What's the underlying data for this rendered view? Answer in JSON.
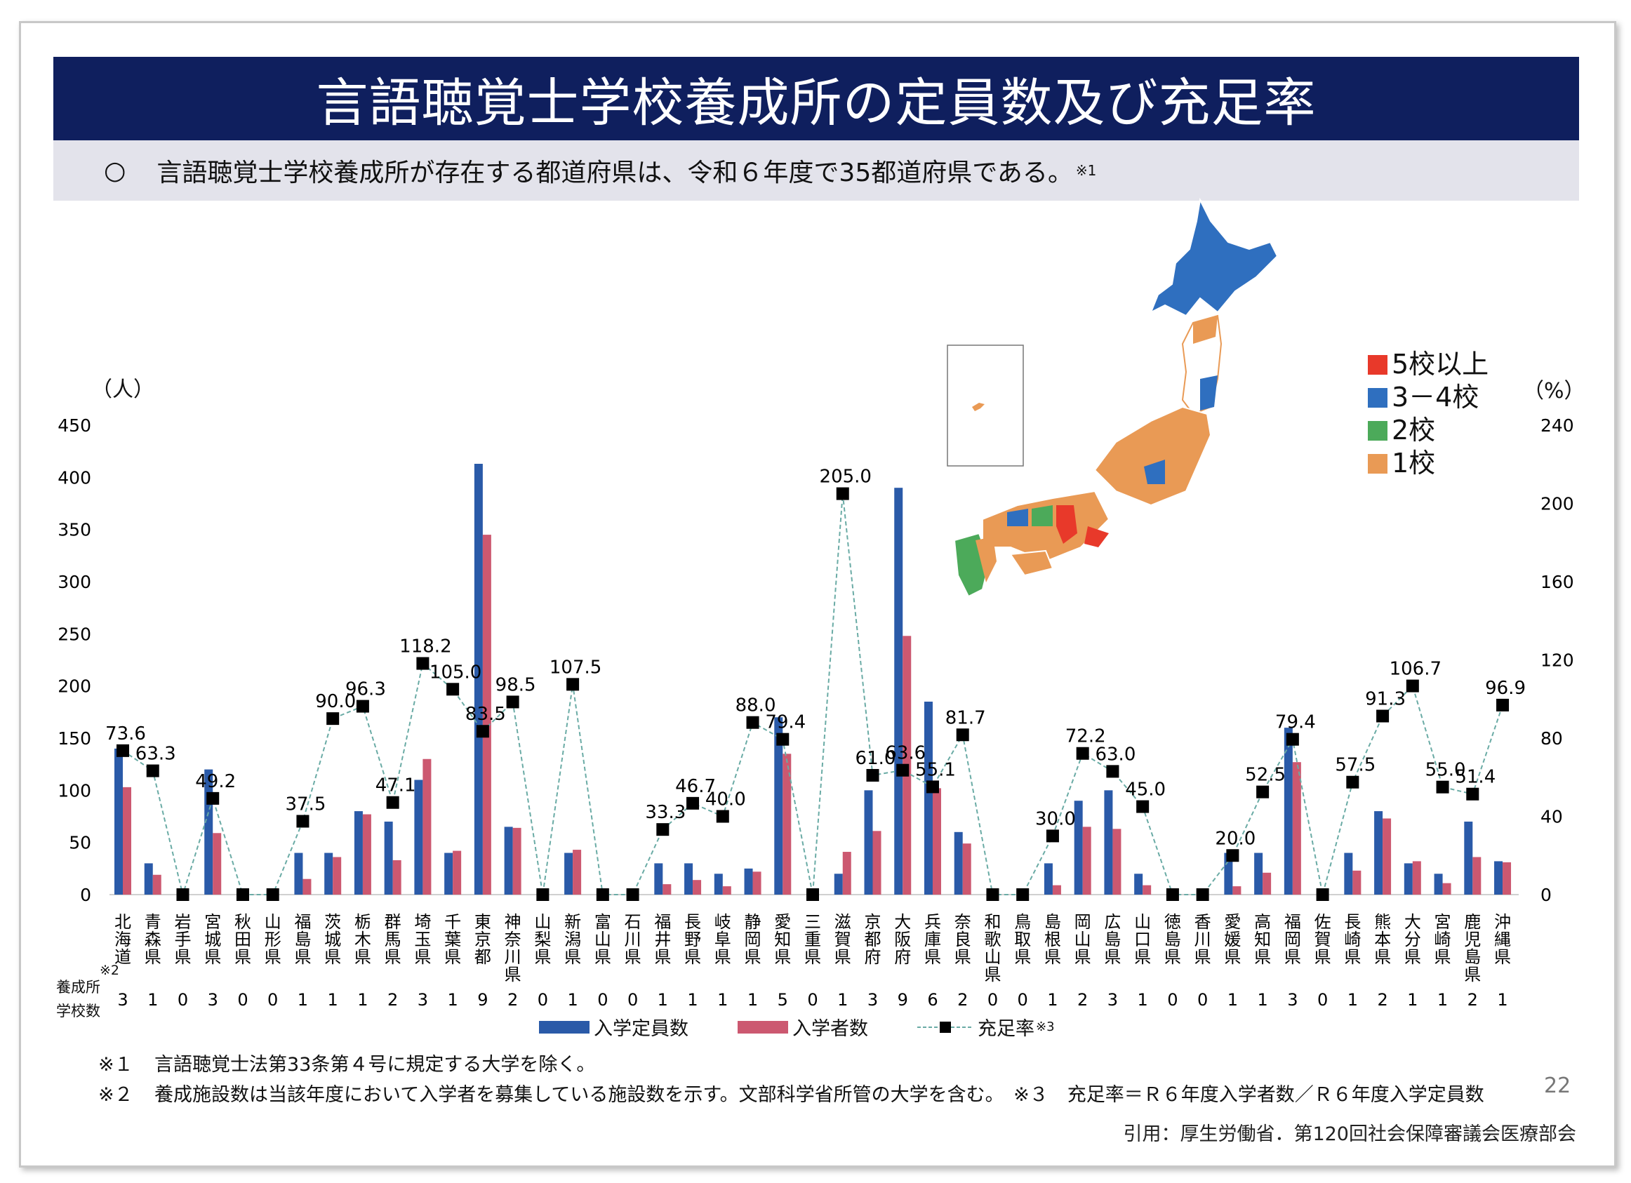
{
  "title": "言語聴覚士学校養成所の定員数及び充足率",
  "subtitle": {
    "bullet": "○",
    "text": "言語聴覚士学校養成所が存在する都道府県は、令和６年度で35都道府県である。",
    "note_ref": "※1"
  },
  "map_legend": [
    {
      "label": "5校以上",
      "color": "#e8392a"
    },
    {
      "label": "3－4校",
      "color": "#2f6fbf"
    },
    {
      "label": "2校",
      "color": "#4caa5a"
    },
    {
      "label": "1校",
      "color": "#e99a55"
    }
  ],
  "schools_row": {
    "label_line1": "養成所",
    "label_line2": "学校数",
    "note_ref": "※2"
  },
  "chart_data": {
    "type": "bar",
    "title": "言語聴覚士学校養成所の定員数及び充足率",
    "ylabel": "（人）",
    "y2label": "（%）",
    "ylim": [
      0,
      450
    ],
    "y2lim": [
      0,
      240
    ],
    "yticks": [
      0,
      50,
      100,
      150,
      200,
      250,
      300,
      350,
      400,
      450
    ],
    "y2ticks": [
      0,
      40,
      80,
      120,
      160,
      200,
      240
    ],
    "grid": false,
    "legend_placement": "bottom",
    "categories": [
      "北海道",
      "青森県",
      "岩手県",
      "宮城県",
      "秋田県",
      "山形県",
      "福島県",
      "茨城県",
      "栃木県",
      "群馬県",
      "埼玉県",
      "千葉県",
      "東京都",
      "神奈川県",
      "山梨県",
      "新潟県",
      "富山県",
      "石川県",
      "福井県",
      "長野県",
      "岐阜県",
      "静岡県",
      "愛知県",
      "三重県",
      "滋賀県",
      "京都府",
      "大阪府",
      "兵庫県",
      "奈良県",
      "和歌山県",
      "鳥取県",
      "島根県",
      "岡山県",
      "広島県",
      "山口県",
      "徳島県",
      "香川県",
      "愛媛県",
      "高知県",
      "福岡県",
      "佐賀県",
      "長崎県",
      "熊本県",
      "大分県",
      "宮崎県",
      "鹿児島県",
      "沖縄県"
    ],
    "school_counts": [
      3,
      1,
      0,
      3,
      0,
      0,
      1,
      1,
      1,
      2,
      3,
      1,
      9,
      2,
      0,
      1,
      0,
      0,
      1,
      1,
      1,
      1,
      5,
      0,
      1,
      3,
      9,
      6,
      2,
      0,
      0,
      1,
      2,
      3,
      1,
      0,
      0,
      1,
      1,
      3,
      0,
      1,
      2,
      1,
      1,
      2,
      1
    ],
    "series": [
      {
        "name": "入学定員数",
        "color": "#2a5aa8",
        "axis": "left",
        "values": [
          140,
          30,
          0,
          120,
          0,
          0,
          40,
          40,
          80,
          70,
          110,
          40,
          413,
          65,
          0,
          40,
          0,
          0,
          30,
          30,
          20,
          25,
          170,
          0,
          20,
          100,
          390,
          185,
          60,
          0,
          0,
          30,
          90,
          100,
          20,
          0,
          0,
          40,
          40,
          160,
          0,
          40,
          80,
          30,
          20,
          70,
          32
        ]
      },
      {
        "name": "入学者数",
        "color": "#cc5870",
        "axis": "left",
        "values": [
          103,
          19,
          0,
          59,
          0,
          0,
          15,
          36,
          77,
          33,
          130,
          42,
          345,
          64,
          0,
          43,
          0,
          0,
          10,
          14,
          8,
          22,
          135,
          0,
          41,
          61,
          248,
          102,
          49,
          0,
          0,
          9,
          65,
          63,
          9,
          0,
          0,
          8,
          21,
          127,
          0,
          23,
          73,
          32,
          11,
          36,
          31
        ]
      },
      {
        "name": "充足率",
        "note_ref": "※3",
        "type": "line",
        "color": "#6aaba5",
        "axis": "right",
        "values": [
          73.6,
          63.3,
          0,
          49.2,
          0,
          0,
          37.5,
          90.0,
          96.3,
          47.1,
          118.2,
          105.0,
          83.5,
          98.5,
          0,
          107.5,
          0,
          0,
          33.3,
          46.7,
          40.0,
          88.0,
          79.4,
          0,
          205.0,
          61.0,
          63.6,
          55.1,
          81.7,
          0,
          0,
          30.0,
          72.2,
          63.0,
          45.0,
          0,
          0,
          20.0,
          52.5,
          79.4,
          0,
          57.5,
          91.3,
          106.7,
          55.0,
          51.4,
          96.9
        ],
        "labels": [
          "73.6",
          "63.3",
          "",
          "49.2",
          "",
          "",
          "37.5",
          "90.0",
          "96.3",
          "47.1",
          "118.2",
          "105.0",
          "83.5",
          "98.5",
          "",
          "107.5",
          "",
          "",
          "33.3",
          "46.7",
          "40.0",
          "88.0",
          "79.4",
          "",
          "205.0",
          "61.0",
          "63.6",
          "55.1",
          "81.7",
          "",
          "",
          "30.0",
          "72.2",
          "63.0",
          "45.0",
          "",
          "",
          "20.0",
          "52.5",
          "79.4",
          "",
          "57.5",
          "91.3",
          "106.7",
          "55.0",
          "51.4",
          "96.9"
        ]
      }
    ]
  },
  "footnotes": [
    {
      "mark": "※１",
      "text": "言語聴覚士法第33条第４号に規定する大学を除く。"
    },
    {
      "mark": "※２",
      "text": "養成施設数は当該年度において入学者を募集している施設数を示す。文部科学省所管の大学を含む。　※３　充足率＝Ｒ６年度入学者数／Ｒ６年度入学定員数"
    }
  ],
  "citation": "引用：厚生労働省．第120回社会保障審議会医療部会",
  "page_number": "22"
}
